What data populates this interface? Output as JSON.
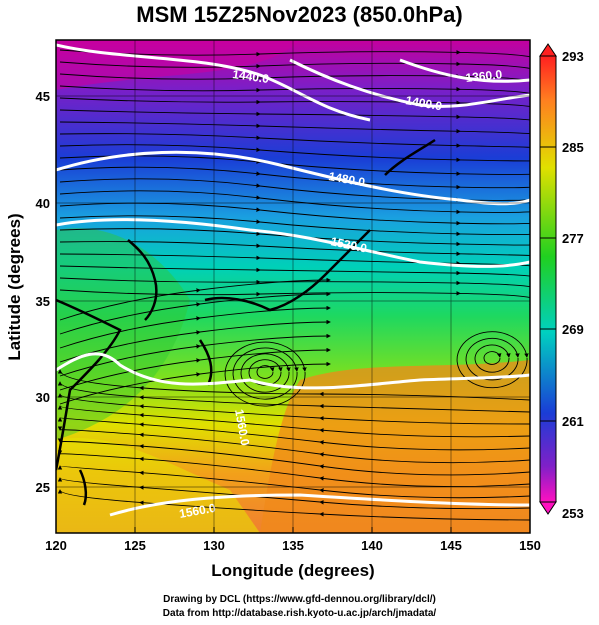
{
  "title": "MSM 15Z25Nov2023 (850.0hPa)",
  "x_axis": {
    "label": "Longitude (degrees)",
    "ticks": [
      "120",
      "125",
      "130",
      "135",
      "140",
      "145",
      "150"
    ]
  },
  "y_axis": {
    "label": "Latitude  (degrees)",
    "ticks": [
      "25",
      "30",
      "35",
      "40",
      "45"
    ]
  },
  "colorbar": {
    "ticks": [
      "293",
      "285",
      "277",
      "269",
      "261",
      "253"
    ]
  },
  "contours": [
    {
      "label": "1440.0"
    },
    {
      "label": "1400.0"
    },
    {
      "label": "1360.0"
    },
    {
      "label": "1480.0"
    },
    {
      "label": "1520.0"
    },
    {
      "label": "1560.0"
    },
    {
      "label": "1560.0"
    }
  ],
  "footer": {
    "line1": "Drawing by DCL (https://www.gfd-dennou.org/library/dcl/)",
    "line2": "Data from http://database.rish.kyoto-u.ac.jp/arch/jmadata/"
  },
  "colors": {
    "temp_cold": "#b0009c",
    "temp_blue": "#1a3dd6",
    "temp_cyan": "#00c8c8",
    "temp_green": "#2fd02a",
    "temp_yellow": "#e8e800",
    "temp_orange": "#f08a1a",
    "contour": "#ffffff",
    "coast": "#000000"
  }
}
